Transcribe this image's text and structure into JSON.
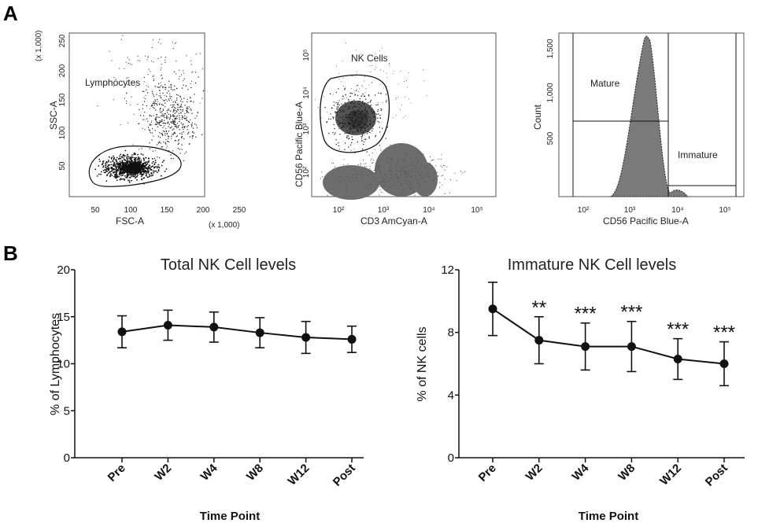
{
  "panel_a": {
    "letter": "A",
    "scatter_fsc_ssc": {
      "x_label": "FSC-A",
      "y_label": "SSC-A",
      "x_multiplier": "(x 1,000)",
      "y_multiplier": "(x 1,000)",
      "x_ticks": [
        "50",
        "100",
        "150",
        "200",
        "250"
      ],
      "y_ticks": [
        "50",
        "100",
        "150",
        "200",
        "250"
      ],
      "gate_label": "Lymphocytes"
    },
    "scatter_cd3_cd56": {
      "x_label": "CD3 AmCyan-A",
      "y_label": "CD56 Pacific Blue-A",
      "x_ticks": [
        "10²",
        "10³",
        "10⁴",
        "10⁵"
      ],
      "y_ticks": [
        "10²",
        "10³",
        "10⁴",
        "10⁵"
      ],
      "gate_label": "NK Cells"
    },
    "histogram_cd56": {
      "x_label": "CD56 Pacific Blue-A",
      "y_label": "Count",
      "x_ticks": [
        "10²",
        "10³",
        "10⁴",
        "10⁵"
      ],
      "y_ticks": [
        "500",
        "1,000",
        "1,500"
      ],
      "gate_mature": "Mature",
      "gate_immature": "Immature"
    }
  },
  "panel_b": {
    "letter": "B"
  },
  "chart_data": [
    {
      "type": "line",
      "title": "Total NK Cell levels",
      "xlabel": "Time Point",
      "ylabel": "% of Lymphocytes",
      "categories": [
        "Pre",
        "W2",
        "W4",
        "W8",
        "W12",
        "Post"
      ],
      "values": [
        13.4,
        14.1,
        13.9,
        13.3,
        12.8,
        12.6
      ],
      "error": [
        1.7,
        1.6,
        1.6,
        1.6,
        1.7,
        1.4
      ],
      "ylim": [
        0,
        20
      ],
      "yticks": [
        "0",
        "5",
        "10",
        "15",
        "20"
      ],
      "significance": [
        "",
        "",
        "",
        "",
        "",
        ""
      ]
    },
    {
      "type": "line",
      "title": "Immature NK Cell levels",
      "xlabel": "Time Point",
      "ylabel": "% of NK cells",
      "categories": [
        "Pre",
        "W2",
        "W4",
        "W8",
        "W12",
        "Post"
      ],
      "values": [
        9.5,
        7.5,
        7.1,
        7.1,
        6.3,
        6.0
      ],
      "error": [
        1.7,
        1.5,
        1.5,
        1.6,
        1.3,
        1.4
      ],
      "ylim": [
        0,
        12
      ],
      "yticks": [
        "0",
        "4",
        "8",
        "12"
      ],
      "significance": [
        "",
        "**",
        "***",
        "***",
        "***",
        "***"
      ]
    }
  ]
}
